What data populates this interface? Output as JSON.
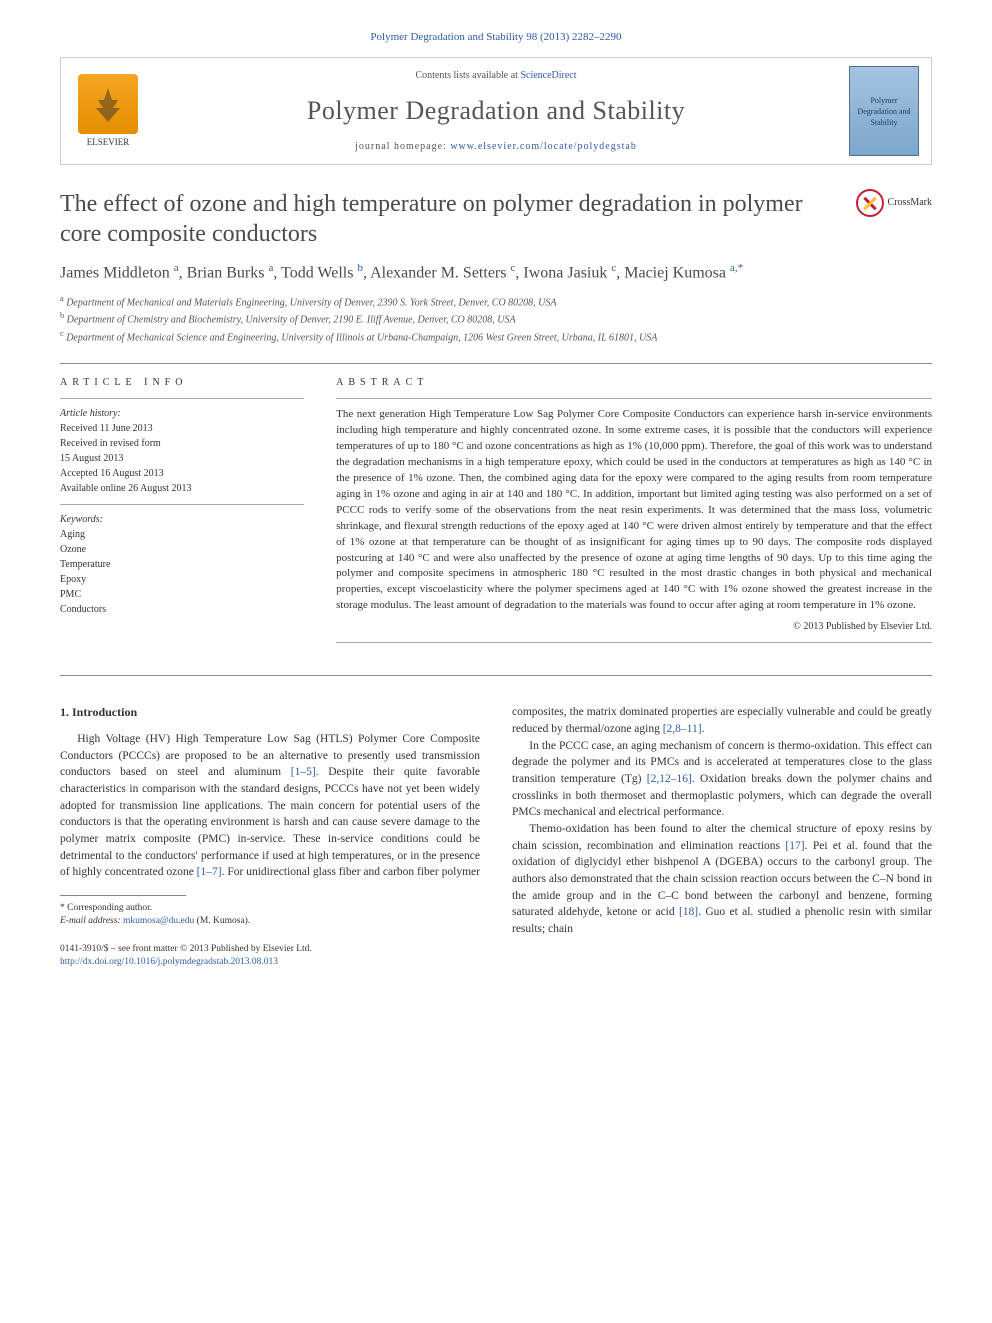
{
  "header_citation": "Polymer Degradation and Stability 98 (2013) 2282–2290",
  "banner": {
    "contents_prefix": "Contents lists available at ",
    "contents_link": "ScienceDirect",
    "journal_name": "Polymer Degradation and Stability",
    "homepage_prefix": "journal homepage: ",
    "homepage_link": "www.elsevier.com/locate/polydegstab",
    "publisher": "ELSEVIER",
    "cover_text": "Polymer Degradation and Stability"
  },
  "title": "The effect of ozone and high temperature on polymer degradation in polymer core composite conductors",
  "crossmark_label": "CrossMark",
  "authors_html": "James Middleton <sup>a</sup>, Brian Burks <sup>a</sup>, Todd Wells <sup>b</sup>, Alexander M. Setters <sup>c</sup>, Iwona Jasiuk <sup>c</sup>, Maciej Kumosa <sup>a,*</sup>",
  "affiliations": [
    "a Department of Mechanical and Materials Engineering, University of Denver, 2390 S. York Street, Denver, CO 80208, USA",
    "b Department of Chemistry and Biochemistry, University of Denver, 2190 E. Iliff Avenue, Denver, CO 80208, USA",
    "c Department of Mechanical Science and Engineering, University of Illinois at Urbana-Champaign, 1206 West Green Street, Urbana, IL 61801, USA"
  ],
  "article_info": {
    "heading": "ARTICLE INFO",
    "history_label": "Article history:",
    "history": [
      "Received 11 June 2013",
      "Received in revised form",
      "15 August 2013",
      "Accepted 16 August 2013",
      "Available online 26 August 2013"
    ],
    "keywords_label": "Keywords:",
    "keywords": [
      "Aging",
      "Ozone",
      "Temperature",
      "Epoxy",
      "PMC",
      "Conductors"
    ]
  },
  "abstract": {
    "heading": "ABSTRACT",
    "text": "The next generation High Temperature Low Sag Polymer Core Composite Conductors can experience harsh in-service environments including high temperature and highly concentrated ozone. In some extreme cases, it is possible that the conductors will experience temperatures of up to 180 °C and ozone concentrations as high as 1% (10,000 ppm). Therefore, the goal of this work was to understand the degradation mechanisms in a high temperature epoxy, which could be used in the conductors at temperatures as high as 140 °C in the presence of 1% ozone. Then, the combined aging data for the epoxy were compared to the aging results from room temperature aging in 1% ozone and aging in air at 140 and 180 °C. In addition, important but limited aging testing was also performed on a set of PCCC rods to verify some of the observations from the neat resin experiments. It was determined that the mass loss, volumetric shrinkage, and flexural strength reductions of the epoxy aged at 140 °C were driven almost entirely by temperature and that the effect of 1% ozone at that temperature can be thought of as insignificant for aging times up to 90 days. The composite rods displayed postcuring at 140 °C and were also unaffected by the presence of ozone at aging time lengths of 90 days. Up to this time aging the polymer and composite specimens in atmospheric 180 °C resulted in the most drastic changes in both physical and mechanical properties, except viscoelasticity where the polymer specimens aged at 140 °C with 1% ozone showed the greatest increase in the storage modulus. The least amount of degradation to the materials was found to occur after aging at room temperature in 1% ozone.",
    "copyright": "© 2013 Published by Elsevier Ltd."
  },
  "section1": {
    "heading": "1. Introduction",
    "para1": "High Voltage (HV) High Temperature Low Sag (HTLS) Polymer Core Composite Conductors (PCCCs) are proposed to be an alternative to presently used transmission conductors based on steel and aluminum [1–5]. Despite their quite favorable characteristics in comparison with the standard designs, PCCCs have not yet been widely adopted for transmission line applications. The main concern for potential users of the conductors is that the operating environment is harsh and can cause severe damage to the polymer matrix composite (PMC) in-service. These in-service conditions could be detrimental to the conductors' performance if used at high temperatures, or in the presence of highly concentrated ozone [1–7]. For unidirectional glass fiber and carbon fiber polymer",
    "para2": "composites, the matrix dominated properties are especially vulnerable and could be greatly reduced by thermal/ozone aging [2,8–11].",
    "para3": "In the PCCC case, an aging mechanism of concern is thermo-oxidation. This effect can degrade the polymer and its PMCs and is accelerated at temperatures close to the glass transition temperature (Tg) [2,12–16]. Oxidation breaks down the polymer chains and crosslinks in both thermoset and thermoplastic polymers, which can degrade the overall PMCs mechanical and electrical performance.",
    "para4": "Themo-oxidation has been found to alter the chemical structure of epoxy resins by chain scission, recombination and elimination reactions [17]. Pei et al. found that the oxidation of diglycidyl ether bishpenol A (DGEBA) occurs to the carbonyl group. The authors also demonstrated that the chain scission reaction occurs between the C–N bond in the amide group and in the C–C bond between the carbonyl and benzene, forming saturated aldehyde, ketone or acid [18]. Guo et al. studied a phenolic resin with similar results; chain"
  },
  "footnote": {
    "corresp_label": "* Corresponding author.",
    "email_label": "E-mail address:",
    "email": "mkumosa@du.edu",
    "email_name": "(M. Kumosa)."
  },
  "bottom": {
    "issn": "0141-3910/$ – see front matter © 2013 Published by Elsevier Ltd.",
    "doi": "http://dx.doi.org/10.1016/j.polymdegradstab.2013.08.013"
  },
  "colors": {
    "link": "#2d5ca6",
    "text": "#333333",
    "rule": "#888888"
  }
}
